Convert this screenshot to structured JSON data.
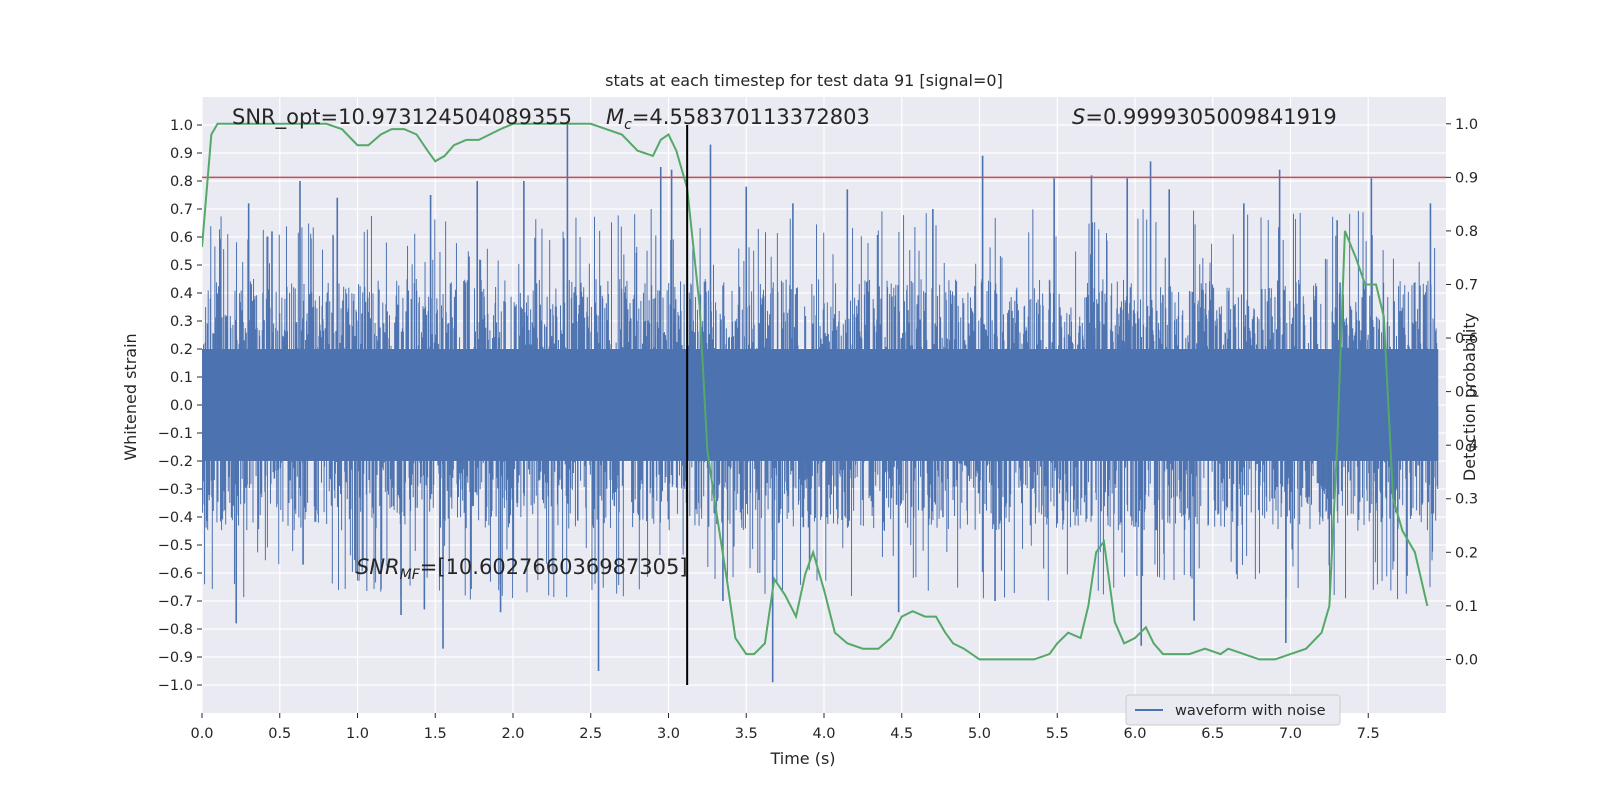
{
  "chart_data": {
    "type": "line",
    "title": "stats at each timestep for test data 91 [signal=0]",
    "xlabel": "Time (s)",
    "ylabel": "Whitened strain",
    "ylabel_right": "Detection probability",
    "xlim": [
      0.0,
      8.0
    ],
    "ylim": [
      -1.1,
      1.1
    ],
    "ylim_right": [
      -0.1,
      1.05
    ],
    "x_ticks": [
      "0.0",
      "0.5",
      "1.0",
      "1.5",
      "2.0",
      "2.5",
      "3.0",
      "3.5",
      "4.0",
      "4.5",
      "5.0",
      "5.5",
      "6.0",
      "6.5",
      "7.0",
      "7.5"
    ],
    "y_ticks": [
      "1.0",
      "0.9",
      "0.8",
      "0.7",
      "0.6",
      "0.5",
      "0.4",
      "0.3",
      "0.2",
      "0.1",
      "0.0",
      "−0.1",
      "−0.2",
      "−0.3",
      "−0.4",
      "−0.5",
      "−0.6",
      "−0.7",
      "−0.8",
      "−0.9",
      "−1.0"
    ],
    "y_right_ticks": [
      "1.0",
      "0.9",
      "0.8",
      "0.7",
      "0.6",
      "0.5",
      "0.4",
      "0.3",
      "0.2",
      "0.1",
      "0.0"
    ],
    "grid": true,
    "legend": {
      "placement": "lower right",
      "entries": [
        "waveform with noise"
      ]
    },
    "annotations": {
      "snr_opt": "SNR_opt=10.973124504089355",
      "mc_symbol": "M",
      "mc_sub": "c",
      "mc_value": "=4.558370113372803",
      "s_symbol": "S",
      "s_value": "=0.9999305009841919",
      "snr_mf_symbol": "SNR",
      "snr_mf_sub": "MF",
      "snr_mf_value": "=[10.602766036987305]"
    },
    "threshold_right": 0.9,
    "marker_time": 3.12,
    "series": [
      {
        "name": "waveform with noise",
        "color": "#4c72b0",
        "kind": "noise envelope",
        "envelope_typical": 0.45,
        "peaks": [
          {
            "x": 0.22,
            "y": -0.78
          },
          {
            "x": 0.3,
            "y": 0.72
          },
          {
            "x": 0.45,
            "y": 0.62
          },
          {
            "x": 0.63,
            "y": 0.8
          },
          {
            "x": 0.65,
            "y": -0.57
          },
          {
            "x": 0.87,
            "y": 0.74
          },
          {
            "x": 0.99,
            "y": -0.6
          },
          {
            "x": 1.28,
            "y": -0.75
          },
          {
            "x": 1.43,
            "y": -0.73
          },
          {
            "x": 1.47,
            "y": 0.75
          },
          {
            "x": 1.55,
            "y": -0.87
          },
          {
            "x": 1.77,
            "y": 0.8
          },
          {
            "x": 1.92,
            "y": -0.74
          },
          {
            "x": 2.07,
            "y": 0.8
          },
          {
            "x": 2.35,
            "y": 1.01
          },
          {
            "x": 2.55,
            "y": -0.95
          },
          {
            "x": 2.95,
            "y": 0.85
          },
          {
            "x": 3.02,
            "y": 0.84
          },
          {
            "x": 3.27,
            "y": 0.93
          },
          {
            "x": 3.35,
            "y": -0.7
          },
          {
            "x": 3.5,
            "y": 0.78
          },
          {
            "x": 3.67,
            "y": -0.99
          },
          {
            "x": 3.8,
            "y": 0.72
          },
          {
            "x": 4.15,
            "y": 0.77
          },
          {
            "x": 4.48,
            "y": -0.74
          },
          {
            "x": 4.7,
            "y": 0.7
          },
          {
            "x": 5.02,
            "y": 0.89
          },
          {
            "x": 5.1,
            "y": -0.7
          },
          {
            "x": 5.48,
            "y": 0.81
          },
          {
            "x": 5.72,
            "y": 0.82
          },
          {
            "x": 5.95,
            "y": 0.81
          },
          {
            "x": 6.04,
            "y": -0.86
          },
          {
            "x": 6.1,
            "y": 0.87
          },
          {
            "x": 6.22,
            "y": 0.77
          },
          {
            "x": 6.38,
            "y": -0.77
          },
          {
            "x": 6.7,
            "y": 0.72
          },
          {
            "x": 6.93,
            "y": 0.84
          },
          {
            "x": 6.97,
            "y": -0.85
          },
          {
            "x": 7.3,
            "y": 0.66
          },
          {
            "x": 7.52,
            "y": 0.81
          },
          {
            "x": 7.9,
            "y": 0.72
          }
        ]
      },
      {
        "name": "",
        "color": "#55a868",
        "axis": "right",
        "kind": "line",
        "x": [
          0.0,
          0.06,
          0.1,
          0.2,
          0.3,
          0.4,
          0.5,
          0.6,
          0.7,
          0.8,
          0.9,
          1.0,
          1.07,
          1.15,
          1.22,
          1.3,
          1.38,
          1.45,
          1.5,
          1.56,
          1.62,
          1.7,
          1.78,
          1.85,
          1.92,
          2.0,
          2.1,
          2.2,
          2.3,
          2.4,
          2.5,
          2.6,
          2.7,
          2.8,
          2.9,
          2.95,
          3.0,
          3.05,
          3.12,
          3.2,
          3.25,
          3.3,
          3.38,
          3.43,
          3.5,
          3.55,
          3.62,
          3.68,
          3.75,
          3.82,
          3.88,
          3.93,
          4.0,
          4.07,
          4.15,
          4.25,
          4.35,
          4.43,
          4.5,
          4.57,
          4.65,
          4.72,
          4.78,
          4.83,
          4.9,
          5.0,
          5.08,
          5.15,
          5.25,
          5.35,
          5.45,
          5.5,
          5.57,
          5.65,
          5.7,
          5.75,
          5.8,
          5.87,
          5.93,
          6.0,
          6.07,
          6.12,
          6.18,
          6.25,
          6.35,
          6.45,
          6.55,
          6.6,
          6.7,
          6.8,
          6.9,
          7.0,
          7.1,
          7.2,
          7.25,
          7.3,
          7.35,
          7.42,
          7.48,
          7.55,
          7.6,
          7.66,
          7.72,
          7.8,
          7.88
        ],
        "y": [
          0.77,
          0.98,
          1.0,
          1.0,
          1.0,
          1.0,
          1.0,
          1.0,
          1.0,
          1.0,
          0.99,
          0.96,
          0.96,
          0.98,
          0.99,
          0.99,
          0.98,
          0.95,
          0.93,
          0.94,
          0.96,
          0.97,
          0.97,
          0.98,
          0.99,
          1.0,
          1.0,
          1.0,
          1.0,
          1.0,
          1.0,
          0.99,
          0.98,
          0.95,
          0.94,
          0.97,
          0.98,
          0.95,
          0.88,
          0.66,
          0.39,
          0.29,
          0.14,
          0.04,
          0.01,
          0.01,
          0.03,
          0.15,
          0.12,
          0.08,
          0.16,
          0.2,
          0.13,
          0.05,
          0.03,
          0.02,
          0.02,
          0.04,
          0.08,
          0.09,
          0.08,
          0.08,
          0.05,
          0.03,
          0.02,
          0.0,
          0.0,
          0.0,
          0.0,
          0.0,
          0.01,
          0.03,
          0.05,
          0.04,
          0.1,
          0.2,
          0.22,
          0.07,
          0.03,
          0.04,
          0.06,
          0.03,
          0.01,
          0.01,
          0.01,
          0.02,
          0.01,
          0.02,
          0.01,
          0.0,
          0.0,
          0.01,
          0.02,
          0.05,
          0.1,
          0.4,
          0.8,
          0.75,
          0.7,
          0.7,
          0.64,
          0.3,
          0.24,
          0.2,
          0.1
        ]
      }
    ]
  }
}
